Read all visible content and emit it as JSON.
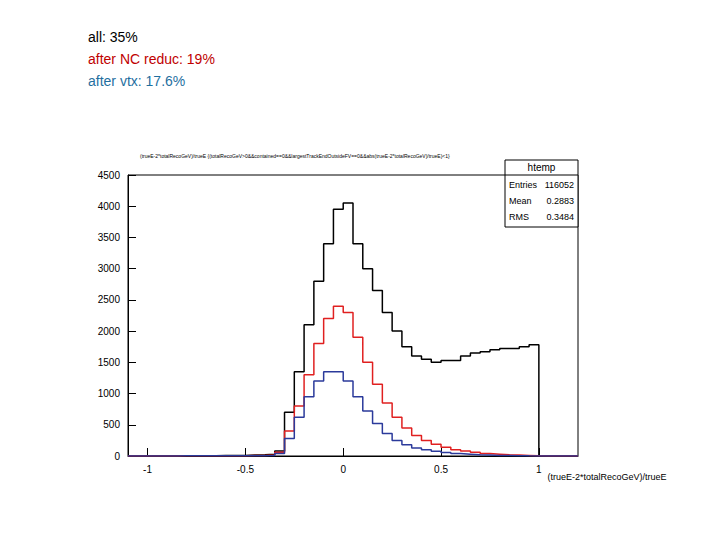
{
  "chart_data": {
    "type": "histogram",
    "title": "(trueE-2*totalRecoGeV)/trueE {(totalRecoGeV>0&&contained==0&&largestTrackEndOutsideFV==0&&abs(trueE-2*totalRecoGeV)/trueE)<1}",
    "xlabel": "(trueE-2*totalRecoGeV)/trueE",
    "annotations": [
      {
        "text": "all: 35%",
        "color": "#000000"
      },
      {
        "text": "after NC reduc: 19%",
        "color": "#c00000"
      },
      {
        "text": "after vtx: 17.6%",
        "color": "#1f6f9f"
      }
    ],
    "stats_box": {
      "title": "htemp",
      "rows": [
        [
          "Entries",
          116052
        ],
        [
          "Mean",
          0.2883
        ],
        [
          "RMS",
          0.3484
        ]
      ]
    },
    "bins": [
      -1.1,
      -1.05,
      -1.0,
      -0.95,
      -0.9,
      -0.85,
      -0.8,
      -0.75,
      -0.7,
      -0.65,
      -0.6,
      -0.55,
      -0.5,
      -0.45,
      -0.4,
      -0.35,
      -0.3,
      -0.25,
      -0.2,
      -0.15,
      -0.1,
      -0.05,
      0,
      0.05,
      0.1,
      0.15,
      0.2,
      0.25,
      0.3,
      0.35,
      0.4,
      0.45,
      0.5,
      0.55,
      0.6,
      0.65,
      0.7,
      0.75,
      0.8,
      0.85,
      0.9,
      0.95,
      1.0,
      1.05,
      1.1,
      1.15,
      1.2
    ],
    "series": [
      {
        "color": "#000000",
        "values": [
          0,
          0,
          5,
          5,
          5,
          5,
          5,
          5,
          5,
          10,
          10,
          10,
          15,
          20,
          30,
          80,
          700,
          1350,
          2100,
          2800,
          3400,
          3950,
          4050,
          3400,
          3000,
          2650,
          2300,
          2000,
          1750,
          1600,
          1550,
          1500,
          1530,
          1530,
          1600,
          1650,
          1670,
          1700,
          1720,
          1720,
          1750,
          1780,
          0,
          0,
          0,
          0
        ]
      },
      {
        "color": "#e02020",
        "values": [
          0,
          0,
          0,
          0,
          0,
          5,
          5,
          5,
          5,
          5,
          5,
          5,
          10,
          10,
          15,
          60,
          400,
          800,
          1300,
          1800,
          2200,
          2400,
          2300,
          1900,
          1500,
          1150,
          850,
          620,
          450,
          330,
          250,
          190,
          140,
          100,
          80,
          60,
          40,
          30,
          20,
          15,
          10,
          5,
          0,
          0,
          0,
          0
        ]
      },
      {
        "color": "#2b3a9b",
        "values": [
          0,
          0,
          0,
          0,
          0,
          3,
          3,
          3,
          3,
          3,
          3,
          3,
          5,
          5,
          10,
          40,
          280,
          620,
          950,
          1200,
          1350,
          1350,
          1200,
          950,
          720,
          520,
          360,
          250,
          180,
          130,
          100,
          75,
          55,
          40,
          30,
          20,
          15,
          10,
          8,
          5,
          3,
          2,
          0,
          0,
          0,
          0
        ]
      }
    ],
    "xlim": [
      -1.1,
      1.2
    ],
    "xticks": [
      -1,
      -0.5,
      0,
      0.5,
      1
    ],
    "ylim": [
      0,
      4500
    ],
    "yticks": [
      0,
      500,
      1000,
      1500,
      2000,
      2500,
      3000,
      3500,
      4000
    ],
    "grid": false
  }
}
